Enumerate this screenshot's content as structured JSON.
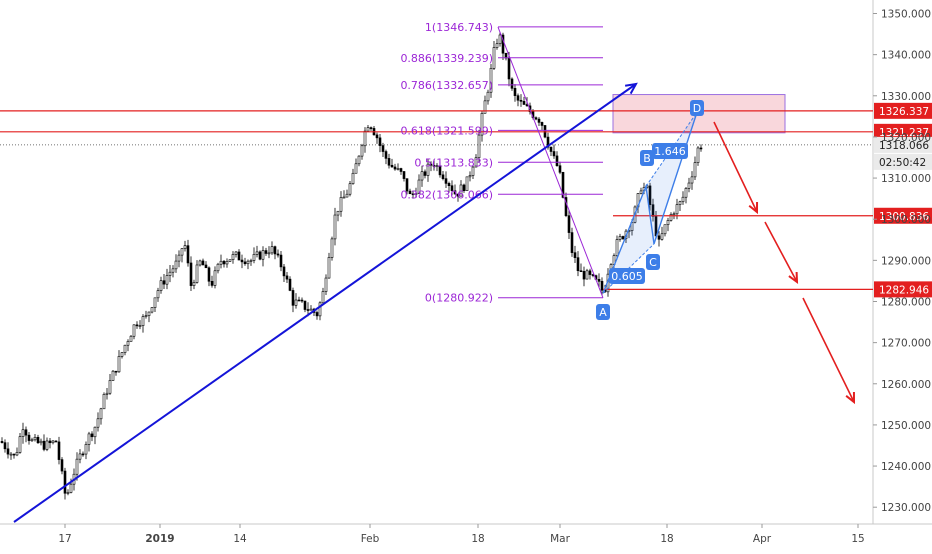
{
  "chart_data": {
    "type": "candlestick",
    "ylim": [
      1225,
      1353
    ],
    "y_ticks": [
      1230,
      1240,
      1250,
      1260,
      1270,
      1280,
      1290,
      1300,
      1310,
      1320,
      1330,
      1340,
      1350
    ],
    "y_tick_labels": [
      "1230.000",
      "1240.000",
      "1250.000",
      "1260.000",
      "1270.000",
      "1280.000",
      "1290.000",
      "1300.000",
      "1310.000",
      "1320.000",
      "1330.000",
      "1340.000",
      "1350.000"
    ],
    "x_tick_labels": [
      "17",
      "2019",
      "14",
      "Feb",
      "18",
      "Mar",
      "18",
      "Apr",
      "15"
    ],
    "price_series": [
      [
        0,
        1246
      ],
      [
        14,
        1242
      ],
      [
        22,
        1250
      ],
      [
        30,
        1246
      ],
      [
        45,
        1245
      ],
      [
        55,
        1246
      ],
      [
        65,
        1232
      ],
      [
        72,
        1238
      ],
      [
        85,
        1246
      ],
      [
        95,
        1250
      ],
      [
        105,
        1258
      ],
      [
        115,
        1264
      ],
      [
        125,
        1270
      ],
      [
        135,
        1275
      ],
      [
        145,
        1276
      ],
      [
        155,
        1282
      ],
      [
        165,
        1286
      ],
      [
        178,
        1290
      ],
      [
        183,
        1295
      ],
      [
        190,
        1284
      ],
      [
        200,
        1290
      ],
      [
        210,
        1284
      ],
      [
        220,
        1290
      ],
      [
        235,
        1291
      ],
      [
        250,
        1290
      ],
      [
        270,
        1293
      ],
      [
        282,
        1288
      ],
      [
        292,
        1280
      ],
      [
        302,
        1279
      ],
      [
        316,
        1277
      ],
      [
        322,
        1282
      ],
      [
        328,
        1292
      ],
      [
        335,
        1302
      ],
      [
        345,
        1306
      ],
      [
        352,
        1310
      ],
      [
        362,
        1320
      ],
      [
        368,
        1324
      ],
      [
        376,
        1320
      ],
      [
        382,
        1316
      ],
      [
        390,
        1313
      ],
      [
        400,
        1311
      ],
      [
        410,
        1305
      ],
      [
        420,
        1310
      ],
      [
        432,
        1314
      ],
      [
        445,
        1310
      ],
      [
        455,
        1306
      ],
      [
        466,
        1309
      ],
      [
        475,
        1316
      ],
      [
        482,
        1326
      ],
      [
        488,
        1333
      ],
      [
        494,
        1342
      ],
      [
        498,
        1345
      ],
      [
        505,
        1338
      ],
      [
        512,
        1330
      ],
      [
        520,
        1328
      ],
      [
        530,
        1326
      ],
      [
        540,
        1324
      ],
      [
        545,
        1320
      ],
      [
        552,
        1315
      ],
      [
        558,
        1312
      ],
      [
        564,
        1302
      ],
      [
        570,
        1293
      ],
      [
        578,
        1287
      ],
      [
        588,
        1286
      ],
      [
        598,
        1284
      ],
      [
        603,
        1282
      ],
      [
        608,
        1289
      ],
      [
        616,
        1294
      ],
      [
        624,
        1297
      ],
      [
        632,
        1300
      ],
      [
        640,
        1308
      ],
      [
        646,
        1307
      ],
      [
        652,
        1300
      ],
      [
        658,
        1294
      ],
      [
        664,
        1298
      ],
      [
        672,
        1302
      ],
      [
        680,
        1304
      ],
      [
        686,
        1308
      ],
      [
        692,
        1312
      ],
      [
        698,
        1318
      ]
    ],
    "support_resistance": [
      {
        "value": 1326.337,
        "label": "1326.337"
      },
      {
        "value": 1321.237,
        "label": "1321.237"
      },
      {
        "value": 1300.836,
        "label": "1300.836"
      },
      {
        "value": 1282.946,
        "label": "1282.946"
      }
    ],
    "current_price": {
      "value": 1318.066,
      "label": "1318.066",
      "countdown": "02:50:42"
    },
    "fibonacci": [
      {
        "ratio": "1",
        "value": 1346.743,
        "label": "1(1346.743)"
      },
      {
        "ratio": "0.886",
        "value": 1339.239,
        "label": "0.886(1339.239)"
      },
      {
        "ratio": "0.786",
        "value": 1332.657,
        "label": "0.786(1332.657)"
      },
      {
        "ratio": "0.618",
        "value": 1321.599,
        "label": "0.618(1321.599)"
      },
      {
        "ratio": "0.5",
        "value": 1313.833,
        "label": "0.5(1313.833)"
      },
      {
        "ratio": "0.382",
        "value": 1306.066,
        "label": "0.382(1306.066)"
      },
      {
        "ratio": "0",
        "value": 1280.922,
        "label": "0(1280.922)"
      }
    ],
    "pattern_points": [
      {
        "label": "A",
        "value": 1282
      },
      {
        "label": "B",
        "value": 1308
      },
      {
        "label": "C",
        "value": 1294
      },
      {
        "label": "D",
        "value": 1326
      }
    ],
    "pattern_ratios": [
      "0.605",
      "1.646"
    ]
  },
  "colors": {
    "candle": "#000000",
    "trendline": "#1414d8",
    "sr_line": "#e31f1f",
    "label_red": "#e31f1f",
    "fib": "#9c27d6",
    "pattern": "#3d7ee8",
    "zone_fill": "#f7c9d0",
    "zone_border": "#9b6fe0",
    "axis_text": "#444444"
  }
}
